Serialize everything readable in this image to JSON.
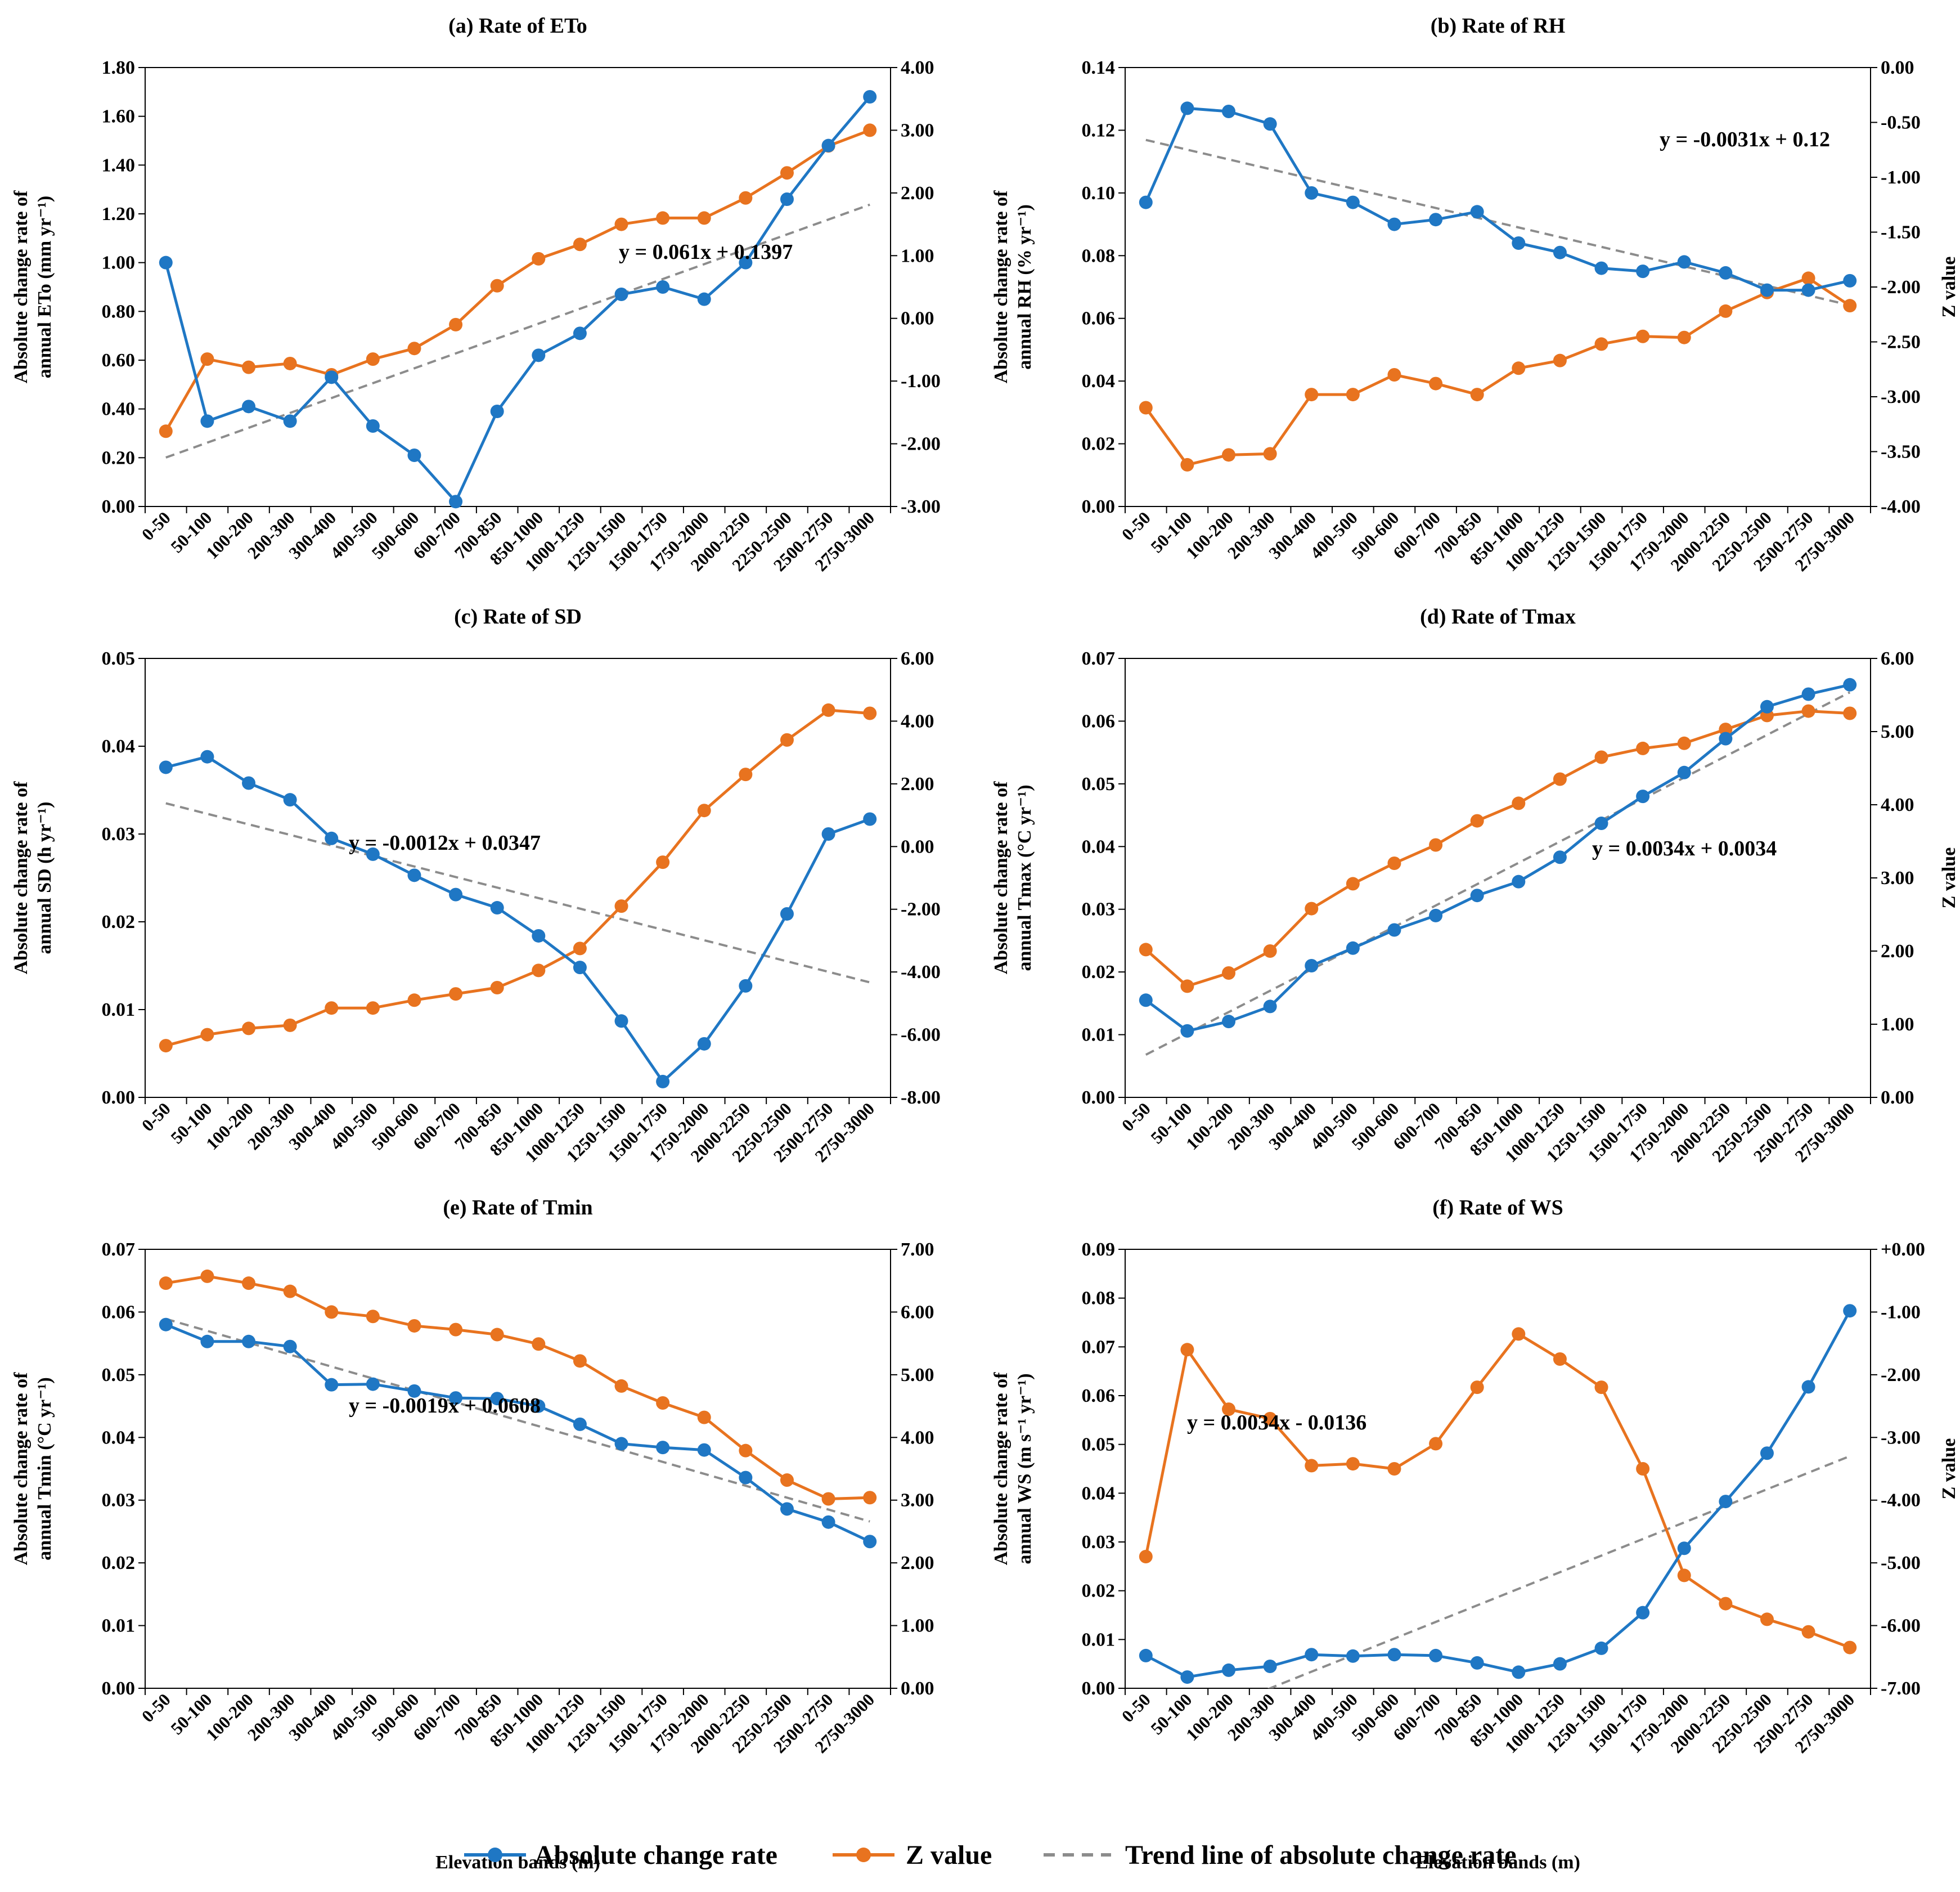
{
  "categories": [
    "0-50",
    "50-100",
    "100-200",
    "200-300",
    "300-400",
    "400-500",
    "500-600",
    "600-700",
    "700-850",
    "850-1000",
    "1000-1250",
    "1250-1500",
    "1500-1750",
    "1750-2000",
    "2000-2250",
    "2250-2500",
    "2500-2750",
    "2750-3000"
  ],
  "legend": {
    "series1": "Absolute change rate",
    "series2": "Z value",
    "trend": "Trend line of absolute change rate"
  },
  "colors": {
    "rate": "#1f77c4",
    "z": "#e8731f",
    "trend": "#8c8c8c",
    "axis": "#000000"
  },
  "chart_data": [
    {
      "type": "line",
      "title": "(a) Rate of ETo",
      "ylabel_left": [
        "Absolute change rate of",
        "annual ETo (mm yr⁻¹)"
      ],
      "ylabel_right": "",
      "xlabel": "",
      "left_ylim": [
        0,
        1.8
      ],
      "left_step": 0.2,
      "left_decimals": 2,
      "right_ylim": [
        -3,
        4
      ],
      "right_step": 1,
      "right_decimals": 2,
      "series": [
        {
          "name": "Absolute change rate",
          "axis": "left",
          "values": [
            1.0,
            0.35,
            0.41,
            0.35,
            0.53,
            0.33,
            0.21,
            0.02,
            0.39,
            0.62,
            0.71,
            0.87,
            0.9,
            0.85,
            1.0,
            1.26,
            1.48,
            1.68
          ]
        },
        {
          "name": "Z value",
          "axis": "right",
          "values": [
            -1.8,
            -0.65,
            -0.78,
            -0.72,
            -0.9,
            -0.65,
            -0.48,
            -0.1,
            0.52,
            0.95,
            1.18,
            1.5,
            1.6,
            1.6,
            1.92,
            2.32,
            2.75,
            3.0
          ]
        }
      ],
      "trend": {
        "slope": 0.061,
        "intercept": 0.1397,
        "label": "y = 0.061x + 0.1397"
      }
    },
    {
      "type": "line",
      "title": "(b) Rate of RH",
      "ylabel_left": [
        "Absolute change rate of",
        "annual RH (% yr⁻¹)"
      ],
      "ylabel_right": "Z value",
      "xlabel": "",
      "left_ylim": [
        0,
        0.14
      ],
      "left_step": 0.02,
      "left_decimals": 2,
      "right_ylim": [
        -4,
        0
      ],
      "right_step": 0.5,
      "right_decimals": 2,
      "series": [
        {
          "name": "Absolute change rate",
          "axis": "left",
          "values": [
            0.097,
            0.127,
            0.126,
            0.122,
            0.1,
            0.097,
            0.09,
            0.0915,
            0.094,
            0.084,
            0.081,
            0.076,
            0.075,
            0.078,
            0.0745,
            0.069,
            0.069,
            0.072
          ]
        },
        {
          "name": "Z value",
          "axis": "right",
          "values": [
            -3.1,
            -3.62,
            -3.53,
            -3.52,
            -2.98,
            -2.98,
            -2.8,
            -2.88,
            -2.98,
            -2.74,
            -2.67,
            -2.52,
            -2.45,
            -2.46,
            -2.22,
            -2.05,
            -1.92,
            -2.17
          ]
        }
      ],
      "trend": {
        "slope": -0.0031,
        "intercept": 0.12,
        "label": "y = -0.0031x + 0.12"
      }
    },
    {
      "type": "line",
      "title": "(c) Rate of SD",
      "ylabel_left": [
        "Absolute change rate of",
        "annual SD (h yr⁻¹)"
      ],
      "ylabel_right": "",
      "xlabel": "",
      "left_ylim": [
        0,
        0.05
      ],
      "left_step": 0.01,
      "left_decimals": 2,
      "right_ylim": [
        -8,
        6
      ],
      "right_step": 2,
      "right_decimals": 2,
      "series": [
        {
          "name": "Absolute change rate",
          "axis": "left",
          "values": [
            0.0376,
            0.0388,
            0.0358,
            0.0339,
            0.0295,
            0.0277,
            0.0253,
            0.0231,
            0.0216,
            0.0184,
            0.0148,
            0.0087,
            0.0018,
            0.0061,
            0.0127,
            0.0209,
            0.03,
            0.0317
          ]
        },
        {
          "name": "Z value",
          "axis": "right",
          "values": [
            -6.35,
            -6.0,
            -5.8,
            -5.7,
            -5.15,
            -5.15,
            -4.9,
            -4.7,
            -4.5,
            -3.95,
            -3.25,
            -1.9,
            -0.5,
            1.15,
            2.3,
            3.4,
            4.35,
            4.25
          ]
        }
      ],
      "trend": {
        "slope": -0.0012,
        "intercept": 0.0347,
        "label": "y = -0.0012x + 0.0347"
      }
    },
    {
      "type": "line",
      "title": "(d) Rate of Tmax",
      "ylabel_left": [
        "Absolute change rate of",
        "annual Tmax (°C yr⁻¹)"
      ],
      "ylabel_right": "Z value",
      "xlabel": "",
      "left_ylim": [
        0,
        0.07
      ],
      "left_step": 0.01,
      "left_decimals": 2,
      "right_ylim": [
        0,
        6
      ],
      "right_step": 1,
      "right_decimals": 2,
      "series": [
        {
          "name": "Absolute change rate",
          "axis": "left",
          "values": [
            0.0155,
            0.0106,
            0.0121,
            0.0145,
            0.021,
            0.0238,
            0.0267,
            0.029,
            0.0322,
            0.0344,
            0.0383,
            0.0437,
            0.048,
            0.0518,
            0.0572,
            0.0623,
            0.0643,
            0.0658
          ]
        },
        {
          "name": "Z value",
          "axis": "right",
          "values": [
            2.02,
            1.52,
            1.7,
            2.0,
            2.58,
            2.92,
            3.2,
            3.45,
            3.78,
            4.02,
            4.35,
            4.65,
            4.77,
            4.84,
            5.03,
            5.22,
            5.28,
            5.25
          ]
        }
      ],
      "trend": {
        "slope": 0.0034,
        "intercept": 0.0034,
        "label": "y = 0.0034x + 0.0034"
      }
    },
    {
      "type": "line",
      "title": "(e) Rate of Tmin",
      "ylabel_left": [
        "Absolute change rate of",
        "annual Tmin (°C yr⁻¹)"
      ],
      "ylabel_right": "",
      "xlabel": "Elevation bands (m)",
      "left_ylim": [
        0,
        0.07
      ],
      "left_step": 0.01,
      "left_decimals": 2,
      "right_ylim": [
        0,
        7
      ],
      "right_step": 1,
      "right_decimals": 2,
      "series": [
        {
          "name": "Absolute change rate",
          "axis": "left",
          "values": [
            0.058,
            0.0553,
            0.0553,
            0.0545,
            0.0484,
            0.0485,
            0.0474,
            0.0463,
            0.0462,
            0.045,
            0.0421,
            0.039,
            0.0384,
            0.038,
            0.0336,
            0.0286,
            0.0265,
            0.0234
          ]
        },
        {
          "name": "Z value",
          "axis": "right",
          "values": [
            6.46,
            6.57,
            6.46,
            6.33,
            6.0,
            5.93,
            5.78,
            5.72,
            5.64,
            5.49,
            5.22,
            4.82,
            4.55,
            4.32,
            3.79,
            3.32,
            3.02,
            3.04
          ]
        }
      ],
      "trend": {
        "slope": -0.0019,
        "intercept": 0.0608,
        "label": "y = -0.0019x + 0.0608"
      }
    },
    {
      "type": "line",
      "title": "(f) Rate of WS",
      "ylabel_left": [
        "Absolute change rate of",
        "annual WS (m s⁻¹ yr⁻¹)"
      ],
      "ylabel_right": "Z value",
      "xlabel": "Elevation bands (m)",
      "left_ylim": [
        0,
        0.09
      ],
      "left_step": 0.01,
      "left_decimals": 2,
      "right_ylim": [
        -7,
        0
      ],
      "right_step": 1,
      "right_decimals": 2,
      "right_plus_zero": true,
      "series": [
        {
          "name": "Absolute change rate",
          "axis": "left",
          "values": [
            0.0067,
            0.0023,
            0.0037,
            0.0045,
            0.0069,
            0.0066,
            0.0069,
            0.0067,
            0.0052,
            0.0033,
            0.005,
            0.0082,
            0.0155,
            0.0287,
            0.0383,
            0.0482,
            0.0618,
            0.0774
          ]
        },
        {
          "name": "Z value",
          "axis": "right",
          "values": [
            -4.9,
            -1.6,
            -2.55,
            -2.7,
            -3.45,
            -3.42,
            -3.5,
            -3.1,
            -2.2,
            -1.35,
            -1.75,
            -2.2,
            -3.5,
            -5.2,
            -5.65,
            -5.9,
            -6.1,
            -6.35
          ]
        }
      ],
      "trend": {
        "slope": 0.0034,
        "intercept": -0.0136,
        "label": "y = 0.0034x - 0.0136"
      }
    }
  ]
}
